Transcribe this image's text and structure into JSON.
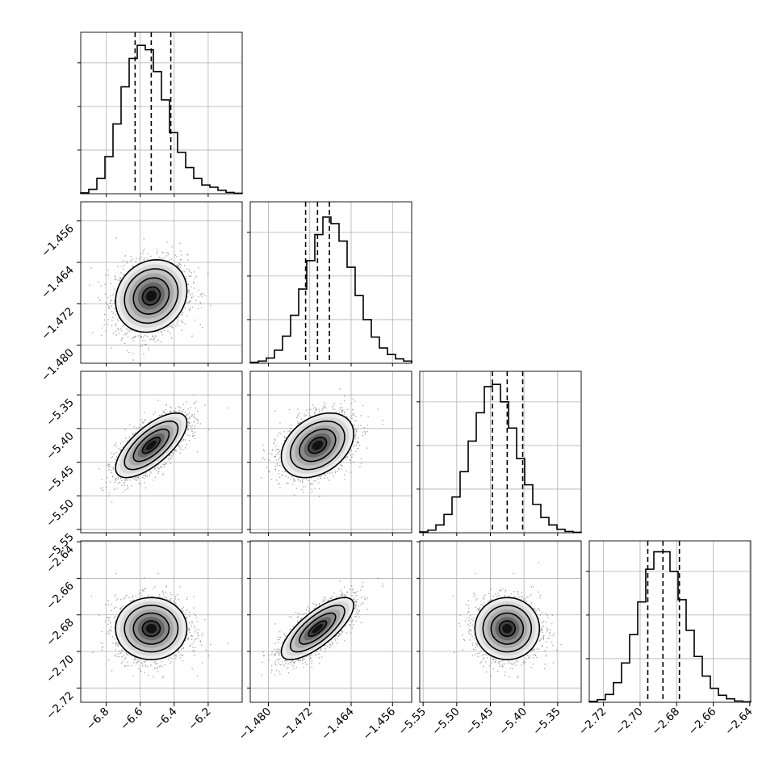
{
  "chart_data": {
    "type": "corner",
    "params": [
      {
        "id": "p1",
        "range": [
          -6.95,
          -6.0
        ],
        "quantiles": [
          -6.63,
          -6.535,
          -6.42
        ],
        "ticks": [
          -6.8,
          -6.6,
          -6.4,
          -6.2
        ],
        "tick_labels": [
          "−6.8",
          "−6.6",
          "−6.4",
          "−6.2"
        ],
        "hist": [
          0.2,
          1.0,
          3.5,
          8.5,
          16.0,
          24.5,
          31.0,
          34.0,
          33.0,
          28.0,
          21.5,
          14.0,
          9.5,
          6.0,
          3.5,
          2.0,
          1.5,
          0.8,
          0.3,
          0.1
        ],
        "hist_ymax": 37
      },
      {
        "id": "p2",
        "range": [
          -1.4835,
          -1.4523
        ],
        "quantiles": [
          -1.4728,
          -1.4705,
          -1.4682
        ],
        "ticks": [
          -1.48,
          -1.472,
          -1.464,
          -1.456
        ],
        "tick_labels": [
          "−1.480",
          "−1.472",
          "−1.464",
          "−1.456"
        ],
        "hist": [
          0.2,
          0.5,
          1.2,
          3.0,
          6.2,
          11.0,
          17.0,
          23.5,
          29.5,
          33.5,
          32.0,
          28.0,
          22.0,
          15.5,
          10.0,
          6.0,
          3.5,
          2.0,
          1.0,
          0.5
        ],
        "hist_ymax": 37
      },
      {
        "id": "p3",
        "range": [
          -5.555,
          -5.315
        ],
        "quantiles": [
          -5.447,
          -5.425,
          -5.402
        ],
        "ticks": [
          -5.55,
          -5.5,
          -5.45,
          -5.4,
          -5.35
        ],
        "tick_labels": [
          "−5.55",
          "−5.50",
          "−5.45",
          "−5.40",
          "−5.35"
        ],
        "hist": [
          0.2,
          0.6,
          1.8,
          4.2,
          8.2,
          14.0,
          21.0,
          27.5,
          33.5,
          34.0,
          30.0,
          24.0,
          17.0,
          11.0,
          6.5,
          3.5,
          1.8,
          0.8,
          0.3,
          0.1
        ],
        "hist_ymax": 37
      },
      {
        "id": "p4",
        "range": [
          -2.7278,
          -2.6395
        ],
        "quantiles": [
          -2.6958,
          -2.6875,
          -2.6785
        ],
        "ticks": [
          -2.72,
          -2.7,
          -2.68,
          -2.66,
          -2.64
        ],
        "tick_labels": [
          "−2.72",
          "−2.70",
          "−2.68",
          "−2.66",
          "−2.64"
        ],
        "hist": [
          0.2,
          0.6,
          1.8,
          4.5,
          9.0,
          15.5,
          23.0,
          30.5,
          34.5,
          34.5,
          30.0,
          23.5,
          16.5,
          10.5,
          6.0,
          3.2,
          1.6,
          0.8,
          0.3,
          0.1
        ],
        "hist_ymax": 37
      }
    ],
    "pairs": [
      {
        "x": "p1",
        "y": "p2",
        "mean": [
          -6.535,
          -1.4705
        ],
        "sd": [
          0.105,
          0.0035
        ],
        "corr": 0.15
      },
      {
        "x": "p1",
        "y": "p3",
        "mean": [
          -6.535,
          -5.425
        ],
        "sd": [
          0.105,
          0.024
        ],
        "corr": 0.7
      },
      {
        "x": "p2",
        "y": "p3",
        "mean": [
          -1.4705,
          -5.425
        ],
        "sd": [
          0.0035,
          0.024
        ],
        "corr": 0.35
      },
      {
        "x": "p1",
        "y": "p4",
        "mean": [
          -6.535,
          -2.6875
        ],
        "sd": [
          0.105,
          0.0085
        ],
        "corr": 0.0
      },
      {
        "x": "p2",
        "y": "p4",
        "mean": [
          -1.4705,
          -2.6875
        ],
        "sd": [
          0.0035,
          0.0085
        ],
        "corr": 0.75
      },
      {
        "x": "p3",
        "y": "p4",
        "mean": [
          -5.425,
          -2.6875
        ],
        "sd": [
          0.024,
          0.0085
        ],
        "corr": 0.0
      }
    ],
    "contour_levels_sigma": [
      0.5,
      1.0,
      1.5,
      2.0
    ],
    "grid": true,
    "colors": {
      "line": "#000000",
      "grid": "#b0b0b0",
      "points": "#555555"
    }
  }
}
